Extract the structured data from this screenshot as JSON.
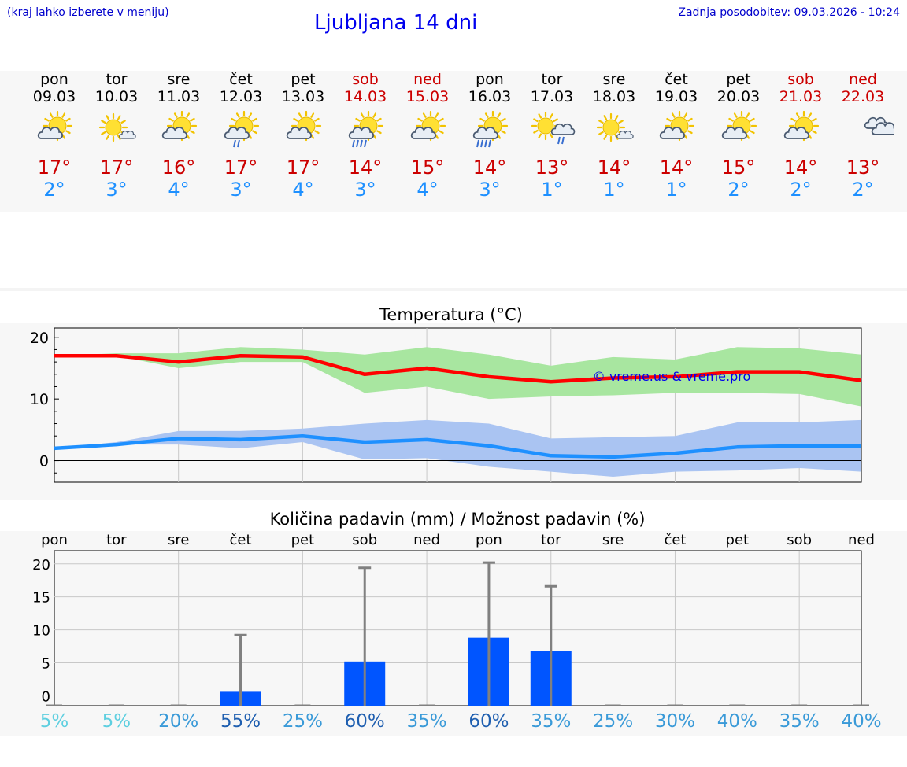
{
  "header": {
    "hint": "(kraj lahko izberete v meniju)",
    "title": "Ljubljana 14 dni",
    "updated": "Zadnja posodobitev: 09.03.2026 - 10:24"
  },
  "days": [
    {
      "name": "pon",
      "date": "09.03",
      "icon": "partly-cloudy-sun-icon",
      "tmax": "17°",
      "tmin": "2°",
      "weekend": false
    },
    {
      "name": "tor",
      "date": "10.03",
      "icon": "sun-small-cloud-icon",
      "tmax": "17°",
      "tmin": "3°",
      "weekend": false
    },
    {
      "name": "sre",
      "date": "11.03",
      "icon": "partly-cloudy-sun-icon",
      "tmax": "16°",
      "tmin": "4°",
      "weekend": false
    },
    {
      "name": "čet",
      "date": "12.03",
      "icon": "sun-cloud-light-rain-icon",
      "tmax": "17°",
      "tmin": "3°",
      "weekend": false
    },
    {
      "name": "pet",
      "date": "13.03",
      "icon": "partly-cloudy-sun-icon",
      "tmax": "17°",
      "tmin": "4°",
      "weekend": false
    },
    {
      "name": "sob",
      "date": "14.03",
      "icon": "sun-cloud-rain-icon",
      "tmax": "14°",
      "tmin": "3°",
      "weekend": true
    },
    {
      "name": "ned",
      "date": "15.03",
      "icon": "partly-cloudy-sun-icon",
      "tmax": "15°",
      "tmin": "4°",
      "weekend": true
    },
    {
      "name": "pon",
      "date": "16.03",
      "icon": "sun-cloud-rain-icon",
      "tmax": "14°",
      "tmin": "3°",
      "weekend": false
    },
    {
      "name": "tor",
      "date": "17.03",
      "icon": "sun-cloud-shower-icon",
      "tmax": "13°",
      "tmin": "1°",
      "weekend": false
    },
    {
      "name": "sre",
      "date": "18.03",
      "icon": "sun-small-cloud-icon",
      "tmax": "14°",
      "tmin": "1°",
      "weekend": false
    },
    {
      "name": "čet",
      "date": "19.03",
      "icon": "partly-cloudy-sun-icon",
      "tmax": "14°",
      "tmin": "1°",
      "weekend": false
    },
    {
      "name": "pet",
      "date": "20.03",
      "icon": "partly-cloudy-sun-icon",
      "tmax": "15°",
      "tmin": "2°",
      "weekend": false
    },
    {
      "name": "sob",
      "date": "21.03",
      "icon": "partly-cloudy-sun-icon",
      "tmax": "14°",
      "tmin": "2°",
      "weekend": true
    },
    {
      "name": "ned",
      "date": "22.03",
      "icon": "cloudy-icon",
      "tmax": "13°",
      "tmin": "2°",
      "weekend": true
    }
  ],
  "colors": {
    "max_line": "#ff0000",
    "max_band": "#a8e6a0",
    "min_line": "#1e90ff",
    "min_band": "#aac4f2",
    "bar": "#0055ff",
    "whisker": "#808080",
    "weekend": "#cc0000",
    "watermark": "#0000ee"
  },
  "chart_data": [
    {
      "type": "line",
      "title": "Temperatura (°C)",
      "watermark": "© vreme.us & vreme.pro",
      "ylim": [
        -3.5,
        21.5
      ],
      "yticks": [
        0,
        10,
        20
      ],
      "x": [
        0,
        1,
        2,
        3,
        4,
        5,
        6,
        7,
        8,
        9,
        10,
        11,
        12,
        13
      ],
      "series": [
        {
          "name": "max",
          "values": [
            17,
            17,
            16,
            17,
            16.8,
            14,
            15,
            13.6,
            12.8,
            13.4,
            13.6,
            14.4,
            14.4,
            13
          ]
        },
        {
          "name": "min",
          "values": [
            2,
            2.6,
            3.6,
            3.4,
            4,
            3,
            3.4,
            2.4,
            0.8,
            0.6,
            1.2,
            2.2,
            2.4,
            2.4
          ]
        }
      ],
      "bands": [
        {
          "name": "max_range",
          "lower": [
            17,
            17,
            15,
            16,
            16,
            11,
            12,
            10,
            10.4,
            10.6,
            11,
            11,
            10.8,
            8.8
          ],
          "upper": [
            17,
            17.4,
            17.4,
            18.4,
            18,
            17.2,
            18.4,
            17.2,
            15.4,
            16.8,
            16.4,
            18.4,
            18.2,
            17.2
          ]
        },
        {
          "name": "min_range",
          "lower": [
            2,
            2.6,
            2.6,
            2,
            3,
            0.2,
            0.4,
            -1,
            -1.8,
            -2.6,
            -1.8,
            -1.6,
            -1.2,
            -1.8
          ],
          "upper": [
            2,
            3,
            4.8,
            4.8,
            5.2,
            6,
            6.6,
            6,
            3.6,
            3.8,
            4,
            6.2,
            6.2,
            6.6
          ]
        }
      ]
    },
    {
      "type": "bar",
      "title": "Količina padavin (mm) / Možnost padavin (%)",
      "categories": [
        "pon",
        "tor",
        "sre",
        "čet",
        "pet",
        "sob",
        "ned",
        "pon",
        "tor",
        "sre",
        "čet",
        "pet",
        "sob",
        "ned"
      ],
      "ylim": [
        -1.5,
        22
      ],
      "yticks": [
        0,
        5,
        10,
        15,
        20
      ],
      "values": [
        0,
        0,
        0,
        0.6,
        0,
        5.2,
        0,
        8.8,
        6.8,
        0,
        0,
        0,
        0,
        0
      ],
      "error_upper": [
        0,
        0,
        0,
        9.2,
        0,
        19.4,
        0,
        20.2,
        16.6,
        0,
        0,
        0,
        0,
        0
      ],
      "probability": [
        "5%",
        "5%",
        "20%",
        "55%",
        "25%",
        "60%",
        "35%",
        "60%",
        "35%",
        "25%",
        "30%",
        "40%",
        "35%",
        "40%"
      ],
      "probability_values": [
        5,
        5,
        20,
        55,
        25,
        60,
        35,
        60,
        35,
        25,
        30,
        40,
        35,
        40
      ]
    }
  ]
}
